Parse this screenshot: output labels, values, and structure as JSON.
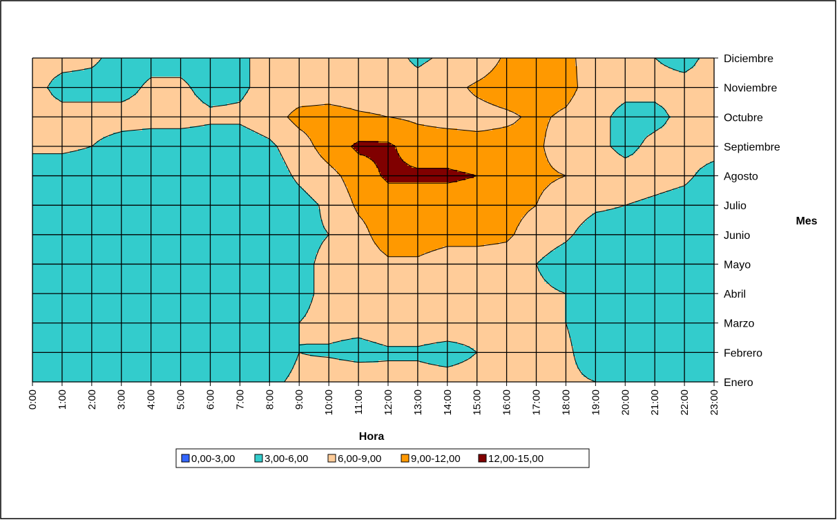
{
  "chart_data": {
    "type": "heatmap",
    "subtype": "contour",
    "xlabel": "Hora",
    "ylabel": "Mes",
    "x_categories": [
      "0:00",
      "1:00",
      "2:00",
      "3:00",
      "4:00",
      "5:00",
      "6:00",
      "7:00",
      "8:00",
      "9:00",
      "10:00",
      "11:00",
      "12:00",
      "13:00",
      "14:00",
      "15:00",
      "16:00",
      "17:00",
      "18:00",
      "19:00",
      "20:00",
      "21:00",
      "22:00",
      "23:00"
    ],
    "y_categories": [
      "Enero",
      "Febrero",
      "Marzo",
      "Abril",
      "Mayo",
      "Junio",
      "Julio",
      "Agosto",
      "Septiembre",
      "Octubre",
      "Noviembre",
      "Diciembre"
    ],
    "legend_placement": "bottom",
    "grid": true,
    "bands": [
      {
        "label": "0,00-3,00",
        "min": 0,
        "max": 3,
        "color": "#3366ff"
      },
      {
        "label": "3,00-6,00",
        "min": 3,
        "max": 6,
        "color": "#33cccc"
      },
      {
        "label": "6,00-9,00",
        "min": 6,
        "max": 9,
        "color": "#ffcc99"
      },
      {
        "label": "9,00-12,00",
        "min": 9,
        "max": 12,
        "color": "#ff9900"
      },
      {
        "label": "12,00-15,00",
        "min": 12,
        "max": 15,
        "color": "#800000"
      }
    ],
    "z": [
      [
        4.5,
        4.5,
        4.5,
        4.5,
        4.5,
        4.5,
        4.5,
        4.5,
        5.5,
        6.5,
        7.0,
        7.0,
        6.5,
        6.5,
        6.5,
        6.5,
        7.0,
        7.0,
        6.5,
        6.0,
        4.5,
        4.5,
        4.5,
        4.5
      ],
      [
        4.5,
        4.5,
        4.5,
        4.5,
        4.5,
        4.5,
        4.5,
        4.5,
        4.5,
        6.0,
        5.8,
        5.5,
        5.8,
        5.8,
        5.5,
        6.0,
        6.5,
        6.5,
        6.5,
        4.5,
        4.5,
        4.5,
        4.5,
        4.5
      ],
      [
        4.5,
        4.5,
        4.5,
        4.5,
        4.5,
        4.5,
        4.5,
        4.5,
        4.5,
        6.0,
        6.5,
        6.5,
        6.8,
        6.8,
        6.8,
        6.5,
        6.5,
        6.5,
        6.0,
        4.5,
        4.5,
        4.5,
        4.5,
        4.5
      ],
      [
        4.5,
        4.5,
        4.5,
        4.5,
        4.5,
        4.5,
        4.5,
        4.5,
        4.5,
        5.5,
        6.5,
        7.0,
        7.0,
        7.0,
        7.0,
        7.0,
        7.0,
        6.5,
        6.0,
        4.5,
        4.5,
        4.5,
        4.5,
        4.5
      ],
      [
        4.5,
        4.5,
        4.5,
        4.5,
        4.5,
        4.5,
        4.5,
        4.5,
        4.5,
        5.5,
        6.5,
        7.5,
        8.5,
        8.5,
        7.5,
        7.5,
        7.5,
        6.0,
        4.5,
        4.5,
        4.5,
        4.5,
        4.5,
        4.5
      ],
      [
        4.5,
        4.5,
        4.5,
        4.5,
        4.5,
        4.5,
        4.5,
        4.5,
        4.5,
        5.5,
        6.0,
        8.0,
        10.5,
        10.5,
        10.0,
        10.0,
        9.5,
        7.5,
        6.5,
        4.5,
        4.5,
        4.5,
        4.5,
        4.5
      ],
      [
        4.5,
        6.0,
        4.5,
        4.5,
        4.5,
        4.5,
        4.5,
        4.5,
        4.5,
        5.0,
        6.5,
        9.5,
        10.5,
        10.5,
        10.5,
        10.5,
        10.0,
        9.0,
        7.5,
        6.5,
        6.0,
        5.5,
        5.0,
        4.5
      ],
      [
        4.5,
        4.5,
        4.5,
        4.5,
        4.5,
        4.5,
        4.5,
        4.5,
        4.5,
        6.5,
        8.0,
        10.5,
        12.5,
        12.5,
        12.5,
        12.0,
        9.5,
        9.5,
        9.0,
        8.0,
        7.5,
        7.0,
        6.5,
        5.0
      ],
      [
        6.5,
        6.5,
        6.0,
        5.0,
        4.5,
        4.5,
        4.5,
        4.5,
        5.5,
        7.5,
        10.5,
        12.5,
        12.5,
        10.5,
        10.5,
        10.0,
        10.0,
        9.5,
        7.5,
        7.0,
        5.0,
        7.0,
        7.0,
        7.0
      ],
      [
        7.0,
        7.0,
        7.0,
        7.0,
        7.0,
        7.0,
        6.5,
        6.5,
        7.5,
        10.0,
        10.5,
        9.5,
        9.0,
        8.5,
        8.0,
        8.0,
        8.5,
        9.5,
        8.5,
        7.0,
        5.0,
        5.0,
        7.0,
        7.0
      ],
      [
        7.0,
        5.0,
        5.0,
        5.0,
        6.5,
        6.5,
        5.0,
        5.5,
        7.0,
        7.0,
        7.0,
        7.0,
        7.0,
        7.0,
        8.0,
        9.5,
        10.5,
        10.5,
        10.0,
        7.5,
        7.0,
        7.0,
        7.0,
        7.0
      ],
      [
        7.0,
        7.0,
        6.5,
        5.0,
        5.0,
        5.0,
        5.0,
        5.5,
        7.0,
        7.0,
        7.0,
        7.0,
        7.0,
        5.5,
        6.5,
        7.0,
        9.5,
        10.5,
        10.0,
        7.0,
        7.0,
        6.0,
        5.0,
        7.0
      ]
    ]
  }
}
